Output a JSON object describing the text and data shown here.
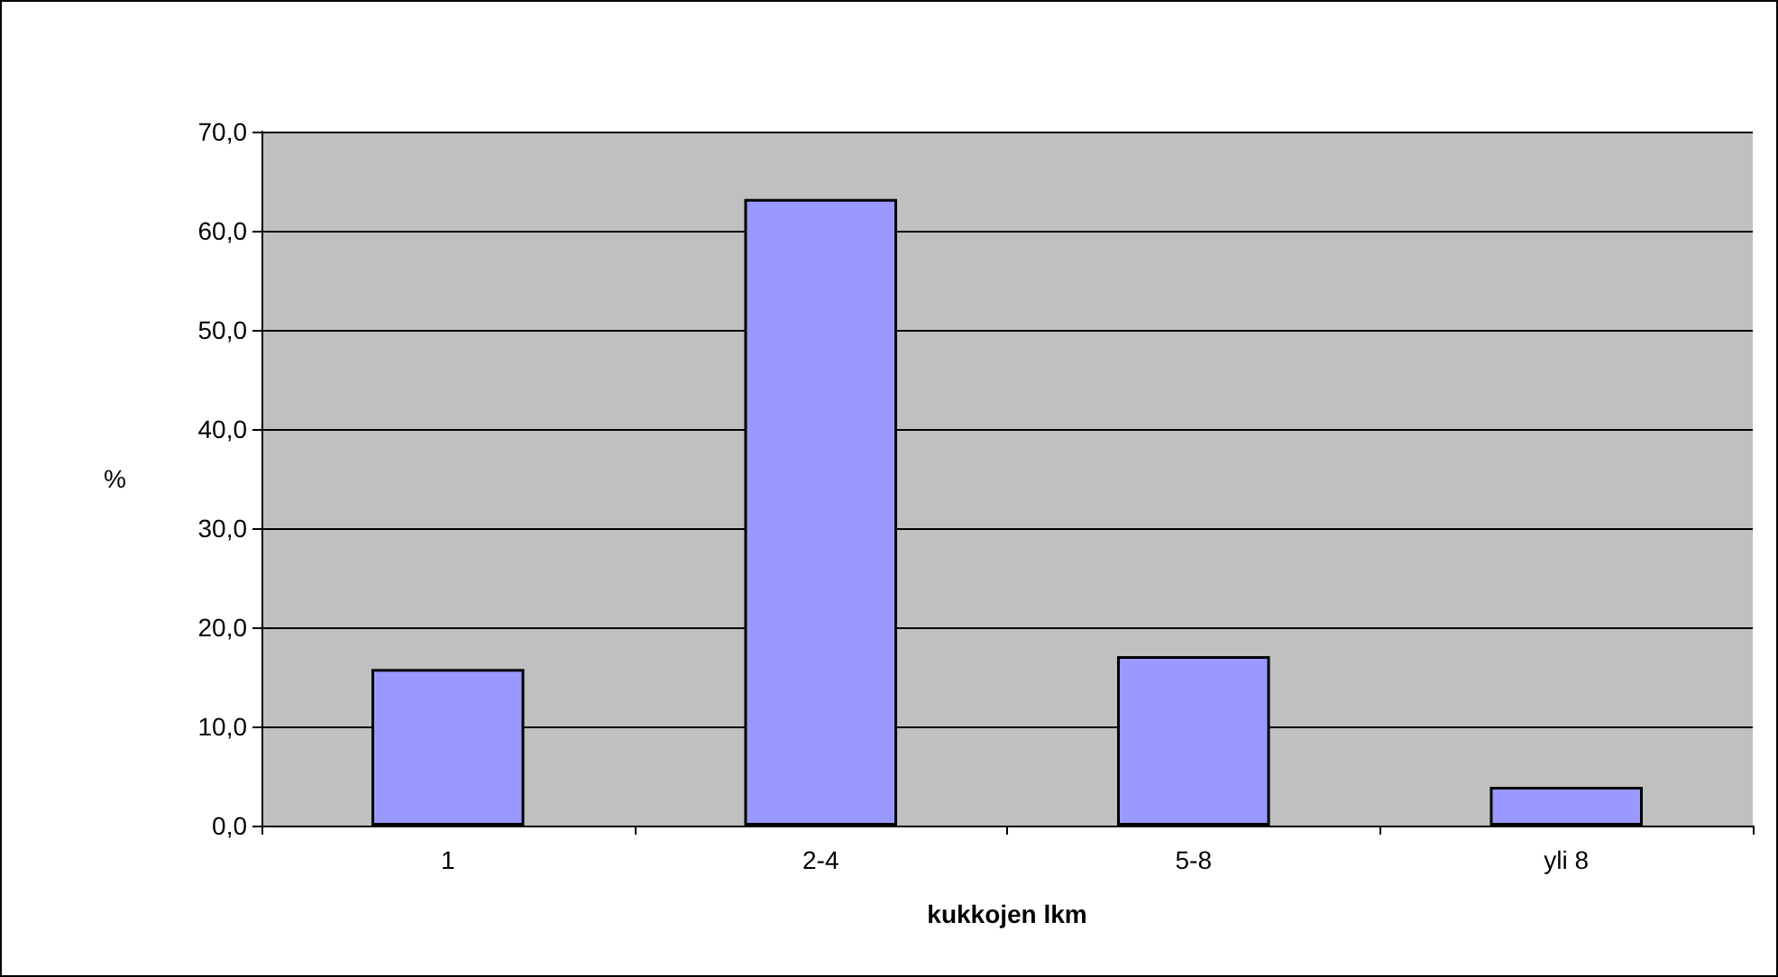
{
  "chart_data": {
    "type": "bar",
    "xlabel": "kukkojen lkm",
    "ylabel": "%",
    "categories": [
      "1",
      "2-4",
      "5-8",
      "yli 8"
    ],
    "values": [
      15.8,
      63.2,
      17.1,
      3.9
    ],
    "color": "#9999ff",
    "ylim": [
      0,
      70
    ],
    "yticks": [
      {
        "value": 0,
        "label": "0,0"
      },
      {
        "value": 10,
        "label": "10,0"
      },
      {
        "value": 20,
        "label": "20,0"
      },
      {
        "value": 30,
        "label": "30,0"
      },
      {
        "value": 40,
        "label": "40,0"
      },
      {
        "value": 50,
        "label": "50,0"
      },
      {
        "value": 60,
        "label": "60,0"
      },
      {
        "value": 70,
        "label": "70,0"
      }
    ],
    "grid": "y"
  }
}
